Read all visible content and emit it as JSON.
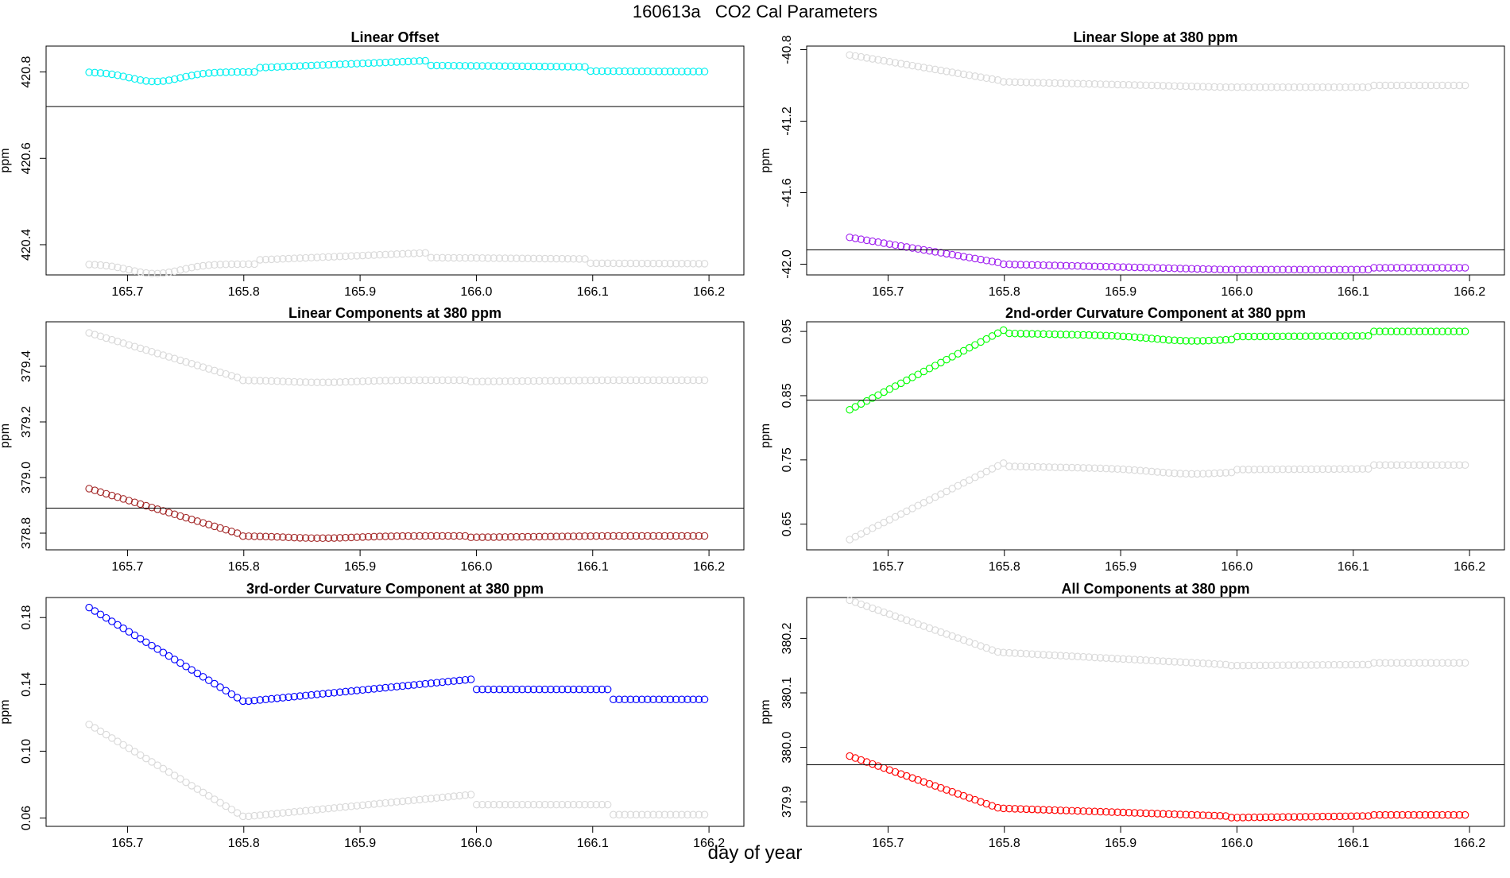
{
  "title": "160613a   CO2 Cal Parameters",
  "xlabel": "day of year",
  "chart_data": [
    {
      "type": "scatter",
      "title": "Linear Offset",
      "ylabel": "ppm",
      "xlim": [
        165.63,
        166.23
      ],
      "ylim": [
        420.33,
        420.86
      ],
      "xticks": [
        "165.7",
        "165.8",
        "165.9",
        "166.0",
        "166.1",
        "166.2"
      ],
      "yticks": [
        "420.4",
        "420.6",
        "420.8"
      ],
      "reference_line": 420.72,
      "series": [
        {
          "color": "#00f0f0",
          "x_start": 165.667,
          "x_step": 0.0049,
          "segments": [
            {
              "n": 30,
              "start": 420.8,
              "end": 420.8,
              "dip": -0.022,
              "dip_center": 0.4
            },
            {
              "n": 30,
              "start": 420.81,
              "end": 420.826,
              "dip": 0,
              "dip_center": 0.5
            },
            {
              "n": 28,
              "start": 420.815,
              "end": 420.812,
              "dip": 0,
              "dip_center": 0.5
            },
            {
              "n": 21,
              "start": 420.802,
              "end": 420.801,
              "dip": 0,
              "dip_center": 0.5
            }
          ]
        },
        {
          "color": "#d9d9d9",
          "x_start": 165.667,
          "x_step": 0.0049,
          "segments": [
            {
              "n": 30,
              "start": 420.355,
              "end": 420.355,
              "dip": -0.022,
              "dip_center": 0.4
            },
            {
              "n": 30,
              "start": 420.365,
              "end": 420.381,
              "dip": 0,
              "dip_center": 0.5
            },
            {
              "n": 28,
              "start": 420.37,
              "end": 420.367,
              "dip": 0,
              "dip_center": 0.5
            },
            {
              "n": 21,
              "start": 420.357,
              "end": 420.356,
              "dip": 0,
              "dip_center": 0.5
            }
          ]
        }
      ]
    },
    {
      "type": "scatter",
      "title": "Linear Slope at 380 ppm",
      "ylabel": "ppm",
      "xlim": [
        165.63,
        166.23
      ],
      "ylim": [
        -42.06,
        -40.78
      ],
      "xticks": [
        "165.7",
        "165.8",
        "165.9",
        "166.0",
        "166.1",
        "166.2"
      ],
      "yticks": [
        "-40.8",
        "-41.2",
        "-41.6",
        "-42.0"
      ],
      "reference_line": -41.92,
      "series": [
        {
          "color": "#a020f0",
          "x_start": 165.667,
          "x_step": 0.0049,
          "segments": [
            {
              "n": 27,
              "start": -41.85,
              "end": -41.99,
              "dip": 0,
              "dip_center": 0.5
            },
            {
              "n": 40,
              "start": -42.0,
              "end": -42.03,
              "dip": 0,
              "dip_center": 0.5
            },
            {
              "n": 25,
              "start": -42.03,
              "end": -42.03,
              "dip": 0,
              "dip_center": 0.5
            },
            {
              "n": 17,
              "start": -42.02,
              "end": -42.02,
              "dip": 0,
              "dip_center": 0.5
            }
          ]
        },
        {
          "color": "#d9d9d9",
          "x_start": 165.667,
          "x_step": 0.0049,
          "segments": [
            {
              "n": 27,
              "start": -40.83,
              "end": -40.97,
              "dip": 0,
              "dip_center": 0.5
            },
            {
              "n": 40,
              "start": -40.98,
              "end": -41.01,
              "dip": 0,
              "dip_center": 0.5
            },
            {
              "n": 25,
              "start": -41.01,
              "end": -41.01,
              "dip": 0,
              "dip_center": 0.5
            },
            {
              "n": 17,
              "start": -41.0,
              "end": -41.0,
              "dip": 0,
              "dip_center": 0.5
            }
          ]
        }
      ]
    },
    {
      "type": "scatter",
      "title": "Linear Components at 380 ppm",
      "ylabel": "ppm",
      "xlim": [
        165.63,
        166.23
      ],
      "ylim": [
        378.74,
        379.56
      ],
      "xticks": [
        "165.7",
        "165.8",
        "165.9",
        "166.0",
        "166.1",
        "166.2"
      ],
      "yticks": [
        "378.8",
        "379.0",
        "379.2",
        "379.4"
      ],
      "reference_line": 378.89,
      "series": [
        {
          "color": "#a52a2a",
          "x_start": 165.667,
          "x_step": 0.0049,
          "segments": [
            {
              "n": 27,
              "start": 378.96,
              "end": 378.8,
              "dip": 0,
              "dip_center": 0.5
            },
            {
              "n": 40,
              "start": 378.79,
              "end": 378.79,
              "dip": -0.008,
              "dip_center": 0.35
            },
            {
              "n": 25,
              "start": 378.785,
              "end": 378.79,
              "dip": 0,
              "dip_center": 0.5
            },
            {
              "n": 17,
              "start": 378.79,
              "end": 378.79,
              "dip": 0,
              "dip_center": 0.5
            }
          ]
        },
        {
          "color": "#d9d9d9",
          "x_start": 165.667,
          "x_step": 0.0049,
          "segments": [
            {
              "n": 27,
              "start": 379.52,
              "end": 379.36,
              "dip": 0,
              "dip_center": 0.5
            },
            {
              "n": 40,
              "start": 379.35,
              "end": 379.35,
              "dip": -0.008,
              "dip_center": 0.35
            },
            {
              "n": 25,
              "start": 379.345,
              "end": 379.35,
              "dip": 0,
              "dip_center": 0.5
            },
            {
              "n": 17,
              "start": 379.35,
              "end": 379.35,
              "dip": 0,
              "dip_center": 0.5
            }
          ]
        }
      ]
    },
    {
      "type": "scatter",
      "title": "2nd-order Curvature Component at 380 ppm",
      "ylabel": "ppm",
      "xlim": [
        165.63,
        166.23
      ],
      "ylim": [
        0.61,
        0.965
      ],
      "xticks": [
        "165.7",
        "165.8",
        "165.9",
        "166.0",
        "166.1",
        "166.2"
      ],
      "yticks": [
        "0.65",
        "0.75",
        "0.85",
        "0.95"
      ],
      "reference_line": 0.843,
      "series": [
        {
          "color": "#00ff00",
          "x_start": 165.667,
          "x_step": 0.0049,
          "segments": [
            {
              "n": 28,
              "start": 0.828,
              "end": 0.952,
              "dip": 0,
              "dip_center": 0.5
            },
            {
              "n": 40,
              "start": 0.947,
              "end": 0.94,
              "dip": -0.006,
              "dip_center": 0.8
            },
            {
              "n": 24,
              "start": 0.942,
              "end": 0.943,
              "dip": 0,
              "dip_center": 0.5
            },
            {
              "n": 17,
              "start": 0.95,
              "end": 0.95,
              "dip": 0,
              "dip_center": 0.5
            }
          ]
        },
        {
          "color": "#d9d9d9",
          "x_start": 165.667,
          "x_step": 0.0049,
          "segments": [
            {
              "n": 28,
              "start": 0.626,
              "end": 0.745,
              "dip": 0,
              "dip_center": 0.5
            },
            {
              "n": 40,
              "start": 0.74,
              "end": 0.733,
              "dip": -0.006,
              "dip_center": 0.8
            },
            {
              "n": 24,
              "start": 0.735,
              "end": 0.736,
              "dip": 0,
              "dip_center": 0.5
            },
            {
              "n": 17,
              "start": 0.742,
              "end": 0.742,
              "dip": 0,
              "dip_center": 0.5
            }
          ]
        }
      ]
    },
    {
      "type": "scatter",
      "title": "3rd-order Curvature Component at 380 ppm",
      "ylabel": "ppm",
      "xlim": [
        165.63,
        166.23
      ],
      "ylim": [
        0.055,
        0.192
      ],
      "xticks": [
        "165.7",
        "165.8",
        "165.9",
        "166.0",
        "166.1",
        "166.2"
      ],
      "yticks": [
        "0.06",
        "0.10",
        "0.14",
        "0.18"
      ],
      "reference_line": null,
      "series": [
        {
          "color": "#0000ff",
          "x_start": 165.667,
          "x_step": 0.0049,
          "segments": [
            {
              "n": 28,
              "start": 0.186,
              "end": 0.13,
              "dip": 0,
              "dip_center": 0.5
            },
            {
              "n": 40,
              "start": 0.13,
              "end": 0.143,
              "dip": 0,
              "dip_center": 0.5
            },
            {
              "n": 24,
              "start": 0.137,
              "end": 0.137,
              "dip": 0,
              "dip_center": 0.5
            },
            {
              "n": 17,
              "start": 0.131,
              "end": 0.131,
              "dip": 0,
              "dip_center": 0.5
            }
          ]
        },
        {
          "color": "#d9d9d9",
          "x_start": 165.667,
          "x_step": 0.0049,
          "segments": [
            {
              "n": 28,
              "start": 0.116,
              "end": 0.061,
              "dip": 0,
              "dip_center": 0.5
            },
            {
              "n": 40,
              "start": 0.061,
              "end": 0.074,
              "dip": 0,
              "dip_center": 0.5
            },
            {
              "n": 24,
              "start": 0.068,
              "end": 0.068,
              "dip": 0,
              "dip_center": 0.5
            },
            {
              "n": 17,
              "start": 0.062,
              "end": 0.062,
              "dip": 0,
              "dip_center": 0.5
            }
          ]
        }
      ]
    },
    {
      "type": "scatter",
      "title": "All Components at 380 ppm",
      "ylabel": "ppm",
      "xlim": [
        165.63,
        166.23
      ],
      "ylim": [
        379.855,
        380.275
      ],
      "xticks": [
        "165.7",
        "165.8",
        "165.9",
        "166.0",
        "166.1",
        "166.2"
      ],
      "yticks": [
        "379.9",
        "380.0",
        "380.1",
        "380.2"
      ],
      "reference_line": 379.968,
      "series": [
        {
          "color": "#ff0000",
          "x_start": 165.667,
          "x_step": 0.0049,
          "segments": [
            {
              "n": 27,
              "start": 379.984,
              "end": 379.889,
              "dip": 0,
              "dip_center": 0.5
            },
            {
              "n": 40,
              "start": 379.888,
              "end": 379.874,
              "dip": 0,
              "dip_center": 0.5
            },
            {
              "n": 25,
              "start": 379.871,
              "end": 379.874,
              "dip": 0,
              "dip_center": 0.5
            },
            {
              "n": 17,
              "start": 379.876,
              "end": 379.876,
              "dip": 0,
              "dip_center": 0.5
            }
          ]
        },
        {
          "color": "#d9d9d9",
          "x_start": 165.667,
          "x_step": 0.0049,
          "segments": [
            {
              "n": 27,
              "start": 380.27,
              "end": 380.175,
              "dip": 0,
              "dip_center": 0.5
            },
            {
              "n": 40,
              "start": 380.174,
              "end": 380.152,
              "dip": 0,
              "dip_center": 0.5
            },
            {
              "n": 25,
              "start": 380.15,
              "end": 380.152,
              "dip": 0,
              "dip_center": 0.5
            },
            {
              "n": 17,
              "start": 380.155,
              "end": 380.155,
              "dip": 0,
              "dip_center": 0.5
            }
          ]
        }
      ]
    }
  ]
}
